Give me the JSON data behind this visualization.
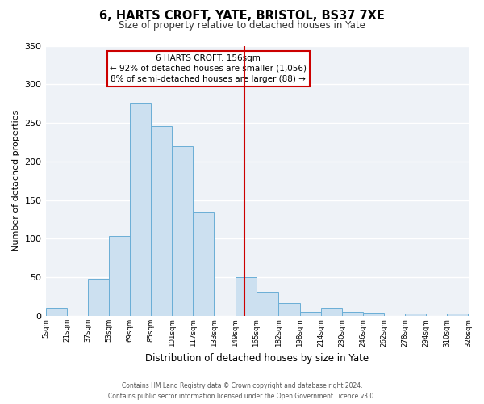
{
  "title": "6, HARTS CROFT, YATE, BRISTOL, BS37 7XE",
  "subtitle": "Size of property relative to detached houses in Yate",
  "xlabel": "Distribution of detached houses by size in Yate",
  "ylabel": "Number of detached properties",
  "bin_labels": [
    "5sqm",
    "21sqm",
    "37sqm",
    "53sqm",
    "69sqm",
    "85sqm",
    "101sqm",
    "117sqm",
    "133sqm",
    "149sqm",
    "165sqm",
    "182sqm",
    "198sqm",
    "214sqm",
    "230sqm",
    "246sqm",
    "262sqm",
    "278sqm",
    "294sqm",
    "310sqm",
    "326sqm"
  ],
  "bar_heights": [
    10,
    0,
    48,
    104,
    275,
    246,
    220,
    135,
    0,
    50,
    30,
    17,
    5,
    10,
    5,
    4,
    0,
    3,
    0,
    3
  ],
  "bin_edges": [
    5,
    21,
    37,
    53,
    69,
    85,
    101,
    117,
    133,
    149,
    165,
    182,
    198,
    214,
    230,
    246,
    262,
    278,
    294,
    310,
    326
  ],
  "bar_color": "#cce0f0",
  "bar_edge_color": "#6aaed6",
  "vline_x": 156,
  "vline_color": "#cc0000",
  "annotation_title": "6 HARTS CROFT: 156sqm",
  "annotation_line1": "← 92% of detached houses are smaller (1,056)",
  "annotation_line2": "8% of semi-detached houses are larger (88) →",
  "annotation_box_color": "#cc0000",
  "ylim": [
    0,
    350
  ],
  "yticks": [
    0,
    50,
    100,
    150,
    200,
    250,
    300,
    350
  ],
  "background_color": "#eef2f7",
  "footer_line1": "Contains HM Land Registry data © Crown copyright and database right 2024.",
  "footer_line2": "Contains public sector information licensed under the Open Government Licence v3.0."
}
